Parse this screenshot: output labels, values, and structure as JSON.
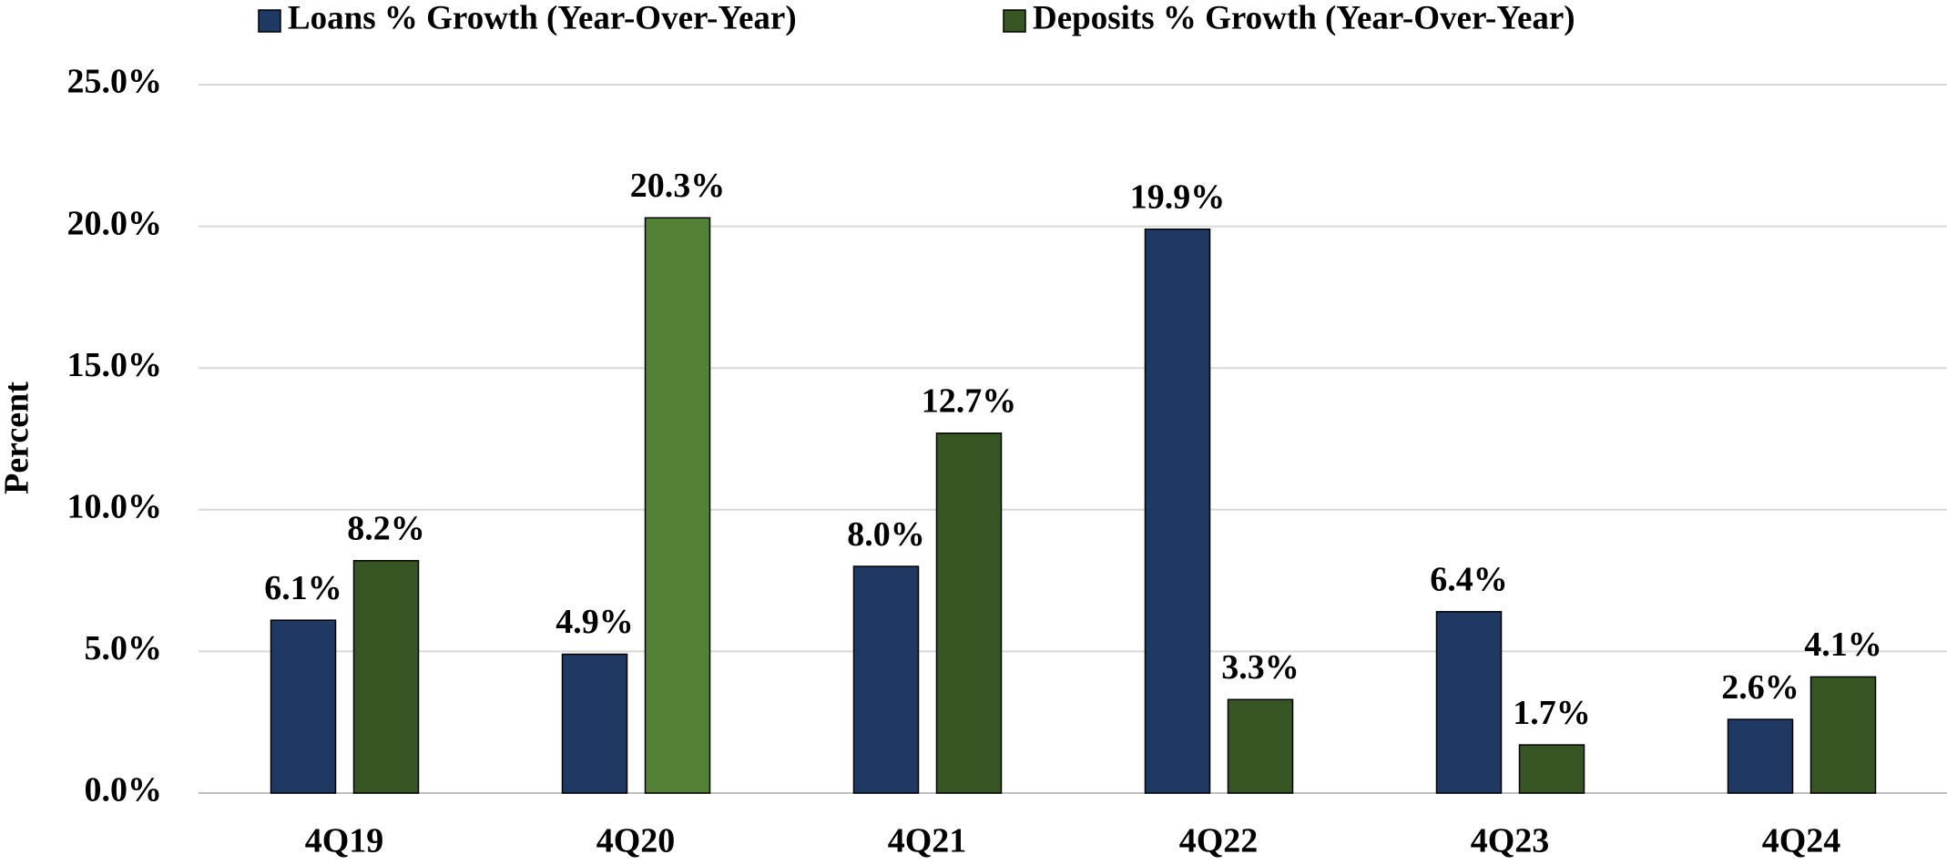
{
  "chart_data": {
    "type": "bar",
    "y_label": "Percent",
    "categories": [
      "4Q19",
      "4Q20",
      "4Q21",
      "4Q22",
      "4Q23",
      "4Q24"
    ],
    "series": [
      {
        "name": "Loans % Growth (Year-Over-Year)",
        "color": "#203864",
        "values": [
          6.1,
          4.9,
          8.0,
          19.9,
          6.4,
          2.6
        ],
        "value_labels": [
          "6.1%",
          "4.9%",
          "8.0%",
          "19.9%",
          "6.4%",
          "2.6%"
        ]
      },
      {
        "name": "Deposits % Growth (Year-Over-Year)",
        "color": "#375623",
        "colors": [
          "#375623",
          "#538135",
          "#375623",
          "#375623",
          "#375623",
          "#375623"
        ],
        "values": [
          8.2,
          20.3,
          12.7,
          3.3,
          1.7,
          4.1
        ],
        "value_labels": [
          "8.2%",
          "20.3%",
          "12.7%",
          "3.3%",
          "1.7%",
          "4.1%"
        ]
      }
    ],
    "ylim": [
      0,
      25
    ],
    "yticks": [
      {
        "value": 0,
        "label": "0.0%"
      },
      {
        "value": 5,
        "label": "5.0%"
      },
      {
        "value": 10,
        "label": "10.0%"
      },
      {
        "value": 15,
        "label": "15.0%"
      },
      {
        "value": 20,
        "label": "20.0%"
      },
      {
        "value": 25,
        "label": "25.0%"
      }
    ],
    "grid": true,
    "legend": "top"
  }
}
